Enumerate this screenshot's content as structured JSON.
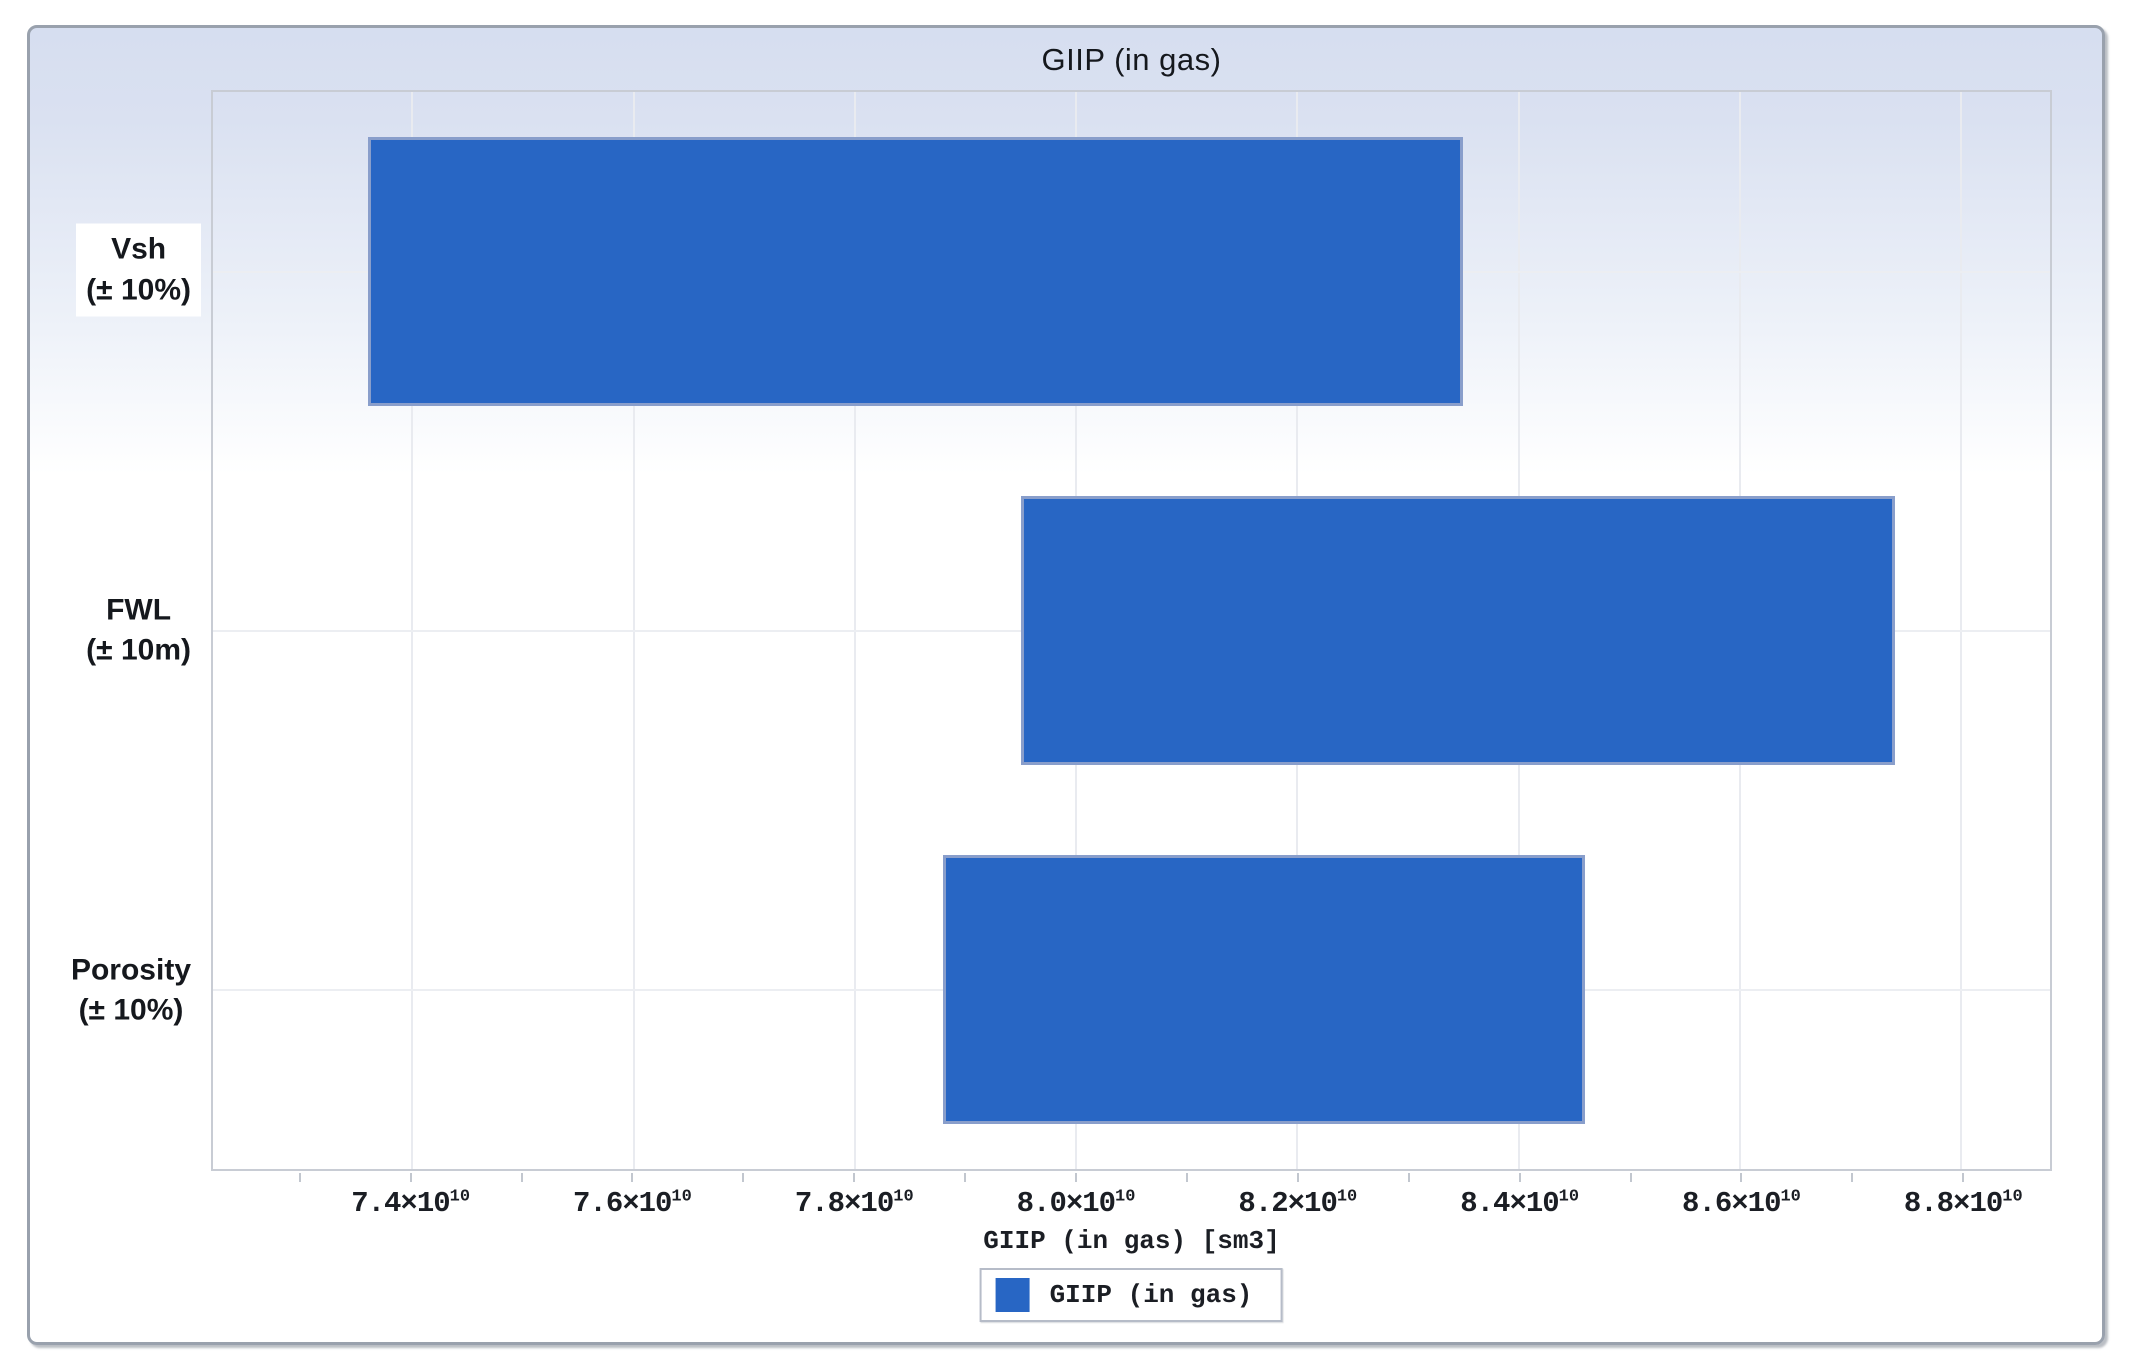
{
  "chart_data": {
    "type": "bar",
    "orientation": "horizontal",
    "title": "GIIP (in gas)",
    "xlabel": "GIIP (in gas) [sm3]",
    "legend": {
      "entries": [
        "GIIP (in gas)"
      ],
      "position": "bottom-center"
    },
    "categories": [
      {
        "name": "Vsh",
        "range_note": "(± 10%)"
      },
      {
        "name": "FWL",
        "range_note": "(± 10m)"
      },
      {
        "name": "Porosity",
        "range_note": "(± 10%)"
      }
    ],
    "series": [
      {
        "name": "GIIP (in gas)",
        "bars": [
          {
            "category": "Vsh (± 10%)",
            "low": 7.36,
            "high": 8.35
          },
          {
            "category": "FWL (± 10m)",
            "low": 7.95,
            "high": 8.74
          },
          {
            "category": "Porosity (± 10%)",
            "low": 7.88,
            "high": 8.46
          }
        ]
      }
    ],
    "x_axis": {
      "unit": "sm3",
      "scale_exponent": 10,
      "times_symbol": "×",
      "base": "10",
      "tick_mantissas": [
        7.4,
        7.6,
        7.8,
        8.0,
        8.2,
        8.4,
        8.6,
        8.8
      ],
      "minor_tick_step": 0.1,
      "xlim": [
        7.22,
        8.88
      ],
      "grid": true
    },
    "colors": {
      "bar_fill": "#2866C4",
      "bar_border": "#9AA8CC",
      "background_top": "#D6DEF0",
      "background_bottom": "#FFFFFF"
    }
  }
}
